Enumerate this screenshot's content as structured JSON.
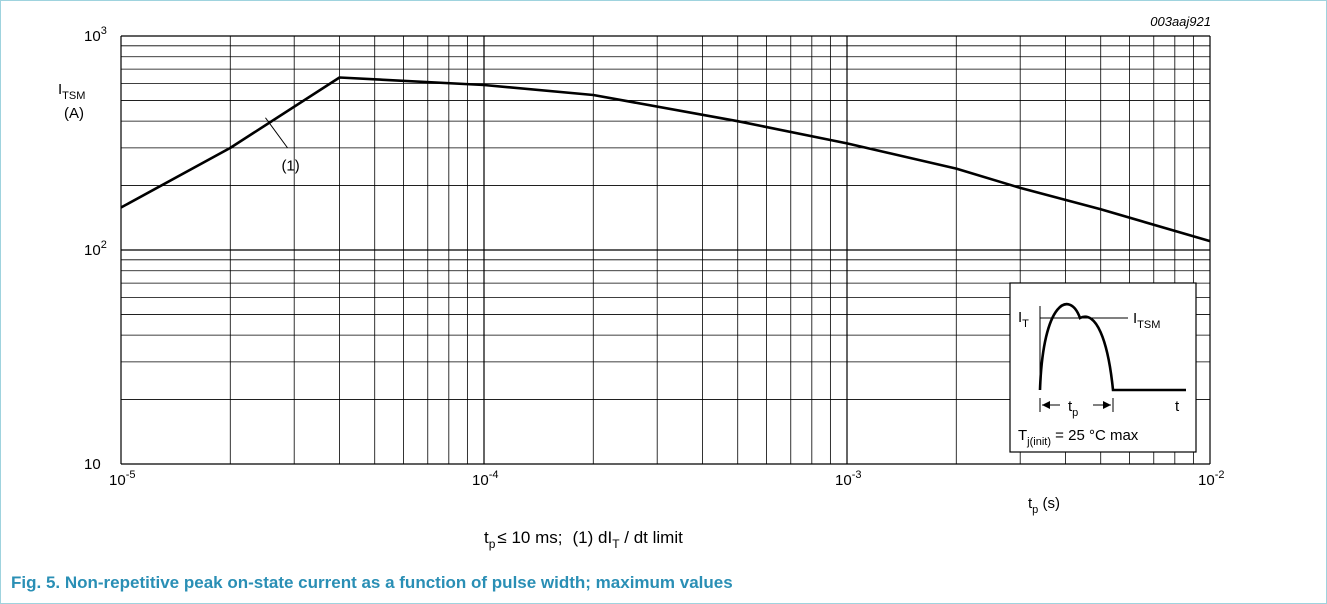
{
  "figure_code": "003aaj921",
  "caption": "Fig. 5. Non-repetitive peak on-state current as a function of pulse width; maximum values",
  "conditions": {
    "tp": "t",
    "tp_sub": "p",
    "tp_rest": "≤ 10 ms;",
    "note_prefix": "(1)  dI",
    "note_sub": "T",
    "note_rest": " / dt    limit"
  },
  "chart_data": {
    "type": "line",
    "x_scale": "log",
    "y_scale": "log",
    "xlim": [
      1e-05,
      0.01
    ],
    "ylim": [
      10,
      1000
    ],
    "grid": true,
    "y_label": {
      "main": "I",
      "sub": "TSM",
      "unit": "(A)"
    },
    "x_label": {
      "main": "t",
      "sub": "p",
      "unit": " (s)"
    },
    "x_ticks": [
      {
        "value": 1e-05,
        "base": "10",
        "exp": "-5"
      },
      {
        "value": 0.0001,
        "base": "10",
        "exp": "-4"
      },
      {
        "value": 0.001,
        "base": "10",
        "exp": "-3"
      },
      {
        "value": 0.01,
        "base": "10",
        "exp": "-2"
      }
    ],
    "y_ticks": [
      {
        "value": 10,
        "base": "10",
        "exp": ""
      },
      {
        "value": 100,
        "base": "10",
        "exp": "2"
      },
      {
        "value": 1000,
        "base": "10",
        "exp": "3"
      }
    ],
    "series": [
      {
        "points": [
          [
            1e-05,
            158
          ],
          [
            2e-05,
            300
          ],
          [
            4e-05,
            640
          ],
          [
            0.0001,
            590
          ],
          [
            0.0002,
            530
          ],
          [
            0.0005,
            400
          ],
          [
            0.001,
            315
          ],
          [
            0.002,
            240
          ],
          [
            0.003,
            195
          ],
          [
            0.005,
            155
          ],
          [
            0.01,
            110
          ]
        ]
      }
    ],
    "annotations": [
      {
        "label": "(1)",
        "points_to": [
          2.5e-05,
          415
        ]
      }
    ],
    "inset": {
      "y_axis": "I",
      "y_axis_sub": "T",
      "peak_label": "I",
      "peak_label_sub": "TSM",
      "x_axis": "t",
      "width_label": "t",
      "width_label_sub": "p",
      "condition": "T",
      "condition_sub": "j(init)",
      "condition_rest": " = 25 °C max"
    }
  }
}
